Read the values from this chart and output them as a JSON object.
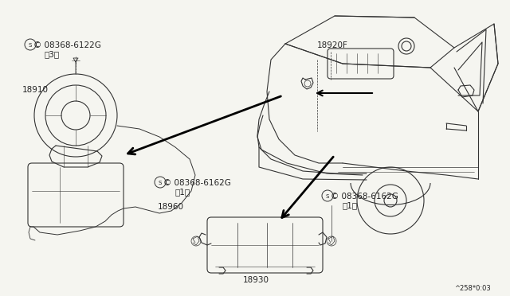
{
  "bg": "#f5f5f0",
  "lc": "#333333",
  "ac": "#000000",
  "tc": "#222222",
  "figsize": [
    6.4,
    3.72
  ],
  "dpi": 100,
  "labels": {
    "part_s1": "S 08368-6122G",
    "part_s1_sub": "(3)",
    "part_18910": "18910",
    "part_18920f": "18920F",
    "part_18960": "18960",
    "part_s2": "S 08368-6162G",
    "part_s2_sub": "(1)",
    "part_s3": "S 08368-6162G",
    "part_s3_sub": "(1)",
    "part_18930": "18930",
    "footer": "^258*0:03"
  }
}
